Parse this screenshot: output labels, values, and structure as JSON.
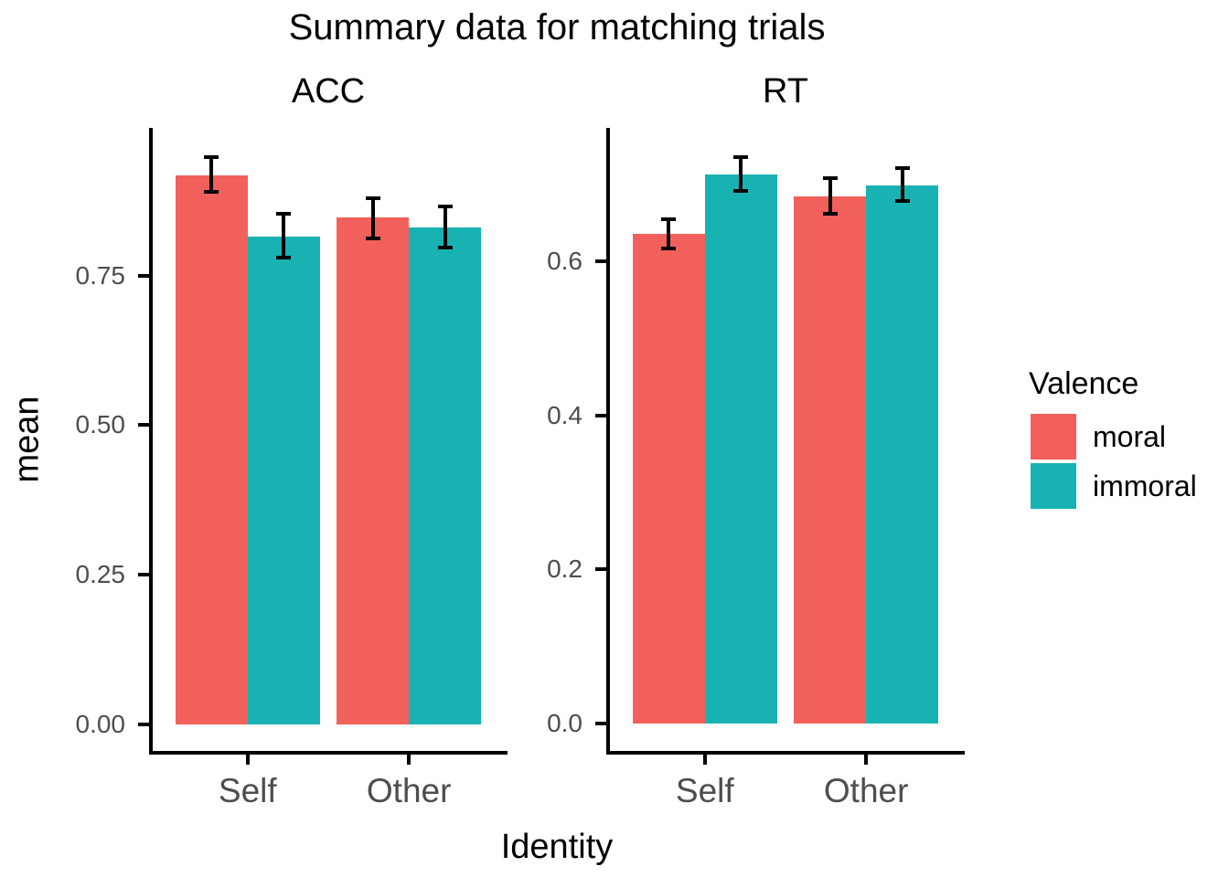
{
  "chart_data": {
    "type": "bar",
    "title": "Summary data for matching trials",
    "xlabel": "Identity",
    "ylabel": "mean",
    "legend_title": "Valence",
    "legend_position": "right",
    "grid": false,
    "categories": [
      "Self",
      "Other"
    ],
    "series": [
      {
        "name": "moral",
        "color": "#F2605C"
      },
      {
        "name": "immoral",
        "color": "#18B2B3"
      }
    ],
    "panels": [
      {
        "facet_label": "ACC",
        "ylim": [
          -0.048,
          0.997
        ],
        "yticks": [
          {
            "value": 0.0,
            "label": "0.00"
          },
          {
            "value": 0.25,
            "label": "0.25"
          },
          {
            "value": 0.5,
            "label": "0.50"
          },
          {
            "value": 0.75,
            "label": "0.75"
          }
        ],
        "groups": [
          {
            "category": "Self",
            "bars": [
              {
                "series": "moral",
                "mean": 0.918,
                "ci": [
                  0.888,
                  0.95
                ]
              },
              {
                "series": "immoral",
                "mean": 0.815,
                "ci": [
                  0.778,
                  0.855
                ]
              }
            ]
          },
          {
            "category": "Other",
            "bars": [
              {
                "series": "moral",
                "mean": 0.847,
                "ci": [
                  0.811,
                  0.881
                ]
              },
              {
                "series": "immoral",
                "mean": 0.831,
                "ci": [
                  0.796,
                  0.867
                ]
              }
            ]
          }
        ]
      },
      {
        "facet_label": "RT",
        "ylim": [
          -0.038,
          0.773
        ],
        "yticks": [
          {
            "value": 0.0,
            "label": "0.0"
          },
          {
            "value": 0.2,
            "label": "0.2"
          },
          {
            "value": 0.4,
            "label": "0.4"
          },
          {
            "value": 0.6,
            "label": "0.6"
          }
        ],
        "groups": [
          {
            "category": "Self",
            "bars": [
              {
                "series": "moral",
                "mean": 0.635,
                "ci": [
                  0.615,
                  0.656
                ]
              },
              {
                "series": "immoral",
                "mean": 0.713,
                "ci": [
                  0.69,
                  0.736
                ]
              }
            ]
          },
          {
            "category": "Other",
            "bars": [
              {
                "series": "moral",
                "mean": 0.684,
                "ci": [
                  0.66,
                  0.709
                ]
              },
              {
                "series": "immoral",
                "mean": 0.698,
                "ci": [
                  0.677,
                  0.722
                ]
              }
            ]
          }
        ]
      }
    ]
  }
}
